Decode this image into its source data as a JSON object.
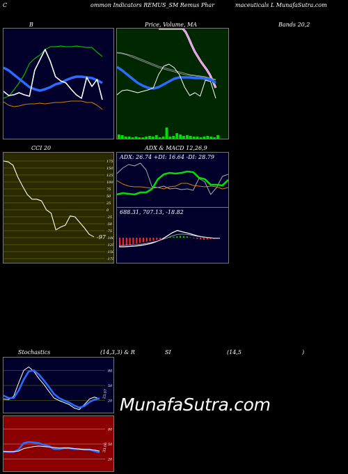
{
  "header": {
    "c": "C",
    "company": "ommon Indicators REMUS_SM Remus Phar",
    "company2": "maceuticals L MunafaSutra.com"
  },
  "titles": {
    "bb": "B",
    "price_ma": "Price, Volume, MA",
    "bands": "Bands 20,2",
    "cci": "CCI 20",
    "adx_macd": "ADX  & MACD 12,26,9",
    "stoch_a": "Stochastics",
    "stoch_b": "(14,3,3) & R",
    "rsi_a": "SI",
    "rsi_b": "(14,5",
    "rsi_c": ")"
  },
  "watermark": "MunafaSutra.com",
  "colors": {
    "bb_bg": "#00002a",
    "price_bg": "#002800",
    "cci_bg": "#2a2a00",
    "macd_bg": "#00002a",
    "stoch_bg": "#00002a",
    "rsi_bg": "#8b0000"
  },
  "chart_data": [
    {
      "id": "bollinger",
      "type": "line",
      "series": [
        {
          "key": "upper",
          "color": "#00bb00",
          "values": [
            100,
            97,
            88,
            78,
            66,
            50,
            43,
            38,
            30,
            26,
            26,
            25,
            26,
            26,
            25,
            26,
            27,
            27,
            34,
            40
          ]
        },
        {
          "key": "middle",
          "color": "#2a6cff",
          "values": [
            56,
            60,
            66,
            72,
            78,
            84,
            87,
            89,
            87,
            84,
            80,
            78,
            74,
            71,
            69,
            69,
            70,
            71,
            74,
            78
          ]
        },
        {
          "key": "lower",
          "color": "#d87f00",
          "values": [
            105,
            110,
            112,
            111,
            109,
            108,
            108,
            107,
            108,
            107,
            106,
            106,
            105,
            104,
            104,
            104,
            106,
            106,
            110,
            116
          ]
        },
        {
          "key": "price",
          "color": "#ffffff",
          "values": [
            90,
            96,
            95,
            92,
            95,
            97,
            60,
            45,
            30,
            47,
            69,
            75,
            78,
            87,
            95,
            100,
            70,
            83,
            73,
            102
          ]
        }
      ]
    },
    {
      "id": "price-volume-ma",
      "type": "line",
      "volume_color": "#00dd00",
      "volume": [
        6,
        5,
        3,
        3,
        2,
        3,
        2,
        2,
        3,
        4,
        3,
        5,
        2,
        3,
        16,
        3,
        4,
        8,
        6,
        4,
        5,
        4,
        3,
        3,
        2,
        3,
        4,
        3,
        2,
        5
      ],
      "series": [
        {
          "key": "price-high",
          "color": "#ff66ff",
          "values": [
            0,
            0,
            0,
            0,
            0,
            0,
            0,
            0,
            0,
            5,
            14,
            24,
            33,
            40,
            47,
            53,
            59,
            66,
            75,
            85
          ]
        },
        {
          "key": "ma-long-1",
          "color": "#aaaaaa",
          "values": [
            34,
            35,
            37,
            39,
            42,
            45,
            48,
            51,
            54,
            56,
            58,
            60,
            62,
            64,
            66,
            67,
            68,
            69,
            71,
            73
          ]
        },
        {
          "key": "ma-long-2",
          "color": "#aaaaaa",
          "values": [
            35,
            36,
            38,
            41,
            44,
            47,
            50,
            53,
            56,
            58,
            60,
            62,
            64,
            66,
            67,
            68,
            69,
            70,
            72,
            74
          ]
        },
        {
          "key": "ma-short",
          "color": "#2a6cff",
          "values": [
            55,
            60,
            66,
            72,
            78,
            82,
            85,
            86,
            84,
            80,
            76,
            72,
            70,
            70,
            70,
            71,
            71,
            72,
            73,
            78
          ]
        },
        {
          "key": "price",
          "color": "#ffffff",
          "values": [
            95,
            89,
            88,
            90,
            92,
            90,
            88,
            85,
            66,
            54,
            51,
            56,
            66,
            84,
            96,
            92,
            97,
            74,
            76,
            100
          ]
        }
      ]
    },
    {
      "id": "cci",
      "type": "line",
      "ylim": [
        -175,
        175
      ],
      "ticks": [
        175,
        150,
        125,
        100,
        75,
        50,
        25,
        0,
        -25,
        -50,
        -75,
        -100,
        -125,
        -150,
        -175
      ],
      "value_label": "-97",
      "series": [
        {
          "key": "cci",
          "color": "#ffffff",
          "values": [
            175,
            172,
            160,
            118,
            85,
            55,
            38,
            38,
            32,
            0,
            -12,
            -72,
            -62,
            -55,
            -22,
            -25,
            -45,
            -65,
            -88,
            -97
          ]
        }
      ]
    },
    {
      "id": "adx",
      "type": "line",
      "label": "ADX: 26.74  +DI: 16.64  -DI: 28.79",
      "series": [
        {
          "key": "adx",
          "color": "#aaaaaa",
          "values": [
            30,
            22,
            17,
            19,
            15,
            25,
            49,
            50,
            48,
            52,
            51,
            53,
            52,
            54,
            37,
            42,
            60,
            50,
            34,
            31
          ]
        },
        {
          "key": "plus-di",
          "color": "#00dd00",
          "values": [
            60,
            58,
            59,
            60,
            57,
            57,
            52,
            38,
            31,
            29,
            30,
            29,
            27,
            28,
            36,
            38,
            46,
            46,
            47,
            39
          ]
        },
        {
          "key": "minus-di",
          "color": "#d87f00",
          "values": [
            40,
            45,
            48,
            49,
            49,
            50,
            51,
            50,
            52,
            49,
            48,
            44,
            44,
            47,
            48,
            49,
            48,
            49,
            52,
            50
          ]
        }
      ]
    },
    {
      "id": "macd",
      "type": "bar",
      "label": "688.31,  707.13,  -18.82",
      "histogram": [
        -5.6,
        -5.3,
        -4.9,
        -4.6,
        -4.2,
        -3.8,
        -3.4,
        -3.0,
        -2.6,
        -2.2,
        -1.8,
        -1.4,
        -1.0,
        -0.5,
        0.0,
        0.4,
        0.7,
        1.0,
        1.2,
        1.1,
        0.8,
        0.2,
        -0.4,
        -0.8,
        -1.1,
        -1.3,
        -1.2,
        -1.0,
        -0.8,
        -0.6
      ],
      "series": [
        {
          "key": "macd",
          "color": "#ffffff",
          "values": [
            9,
            9,
            8.8,
            8.6,
            8.3,
            7.8,
            7.2,
            6.2,
            5.0,
            3.2,
            1.3,
            0.0,
            0.8,
            1.5,
            2.4,
            3.2,
            3.7,
            4.0,
            4.3,
            4.3
          ]
        },
        {
          "key": "signal",
          "color": "#aaaaaa",
          "values": [
            8.3,
            8.2,
            8.1,
            7.9,
            7.6,
            7.2,
            6.7,
            6.0,
            5.1,
            4.2,
            3.0,
            2.2,
            2.0,
            2.3,
            2.8,
            3.4,
            3.8,
            4.1,
            4.3,
            4.4
          ]
        }
      ]
    },
    {
      "id": "stochastics",
      "type": "line",
      "ylim": [
        0,
        100
      ],
      "ticks": [
        80,
        50,
        20
      ],
      "value_label": "23.07",
      "series": [
        {
          "key": "k",
          "color": "#ffffff",
          "values": [
            23,
            22,
            28,
            55,
            80,
            87,
            78,
            64,
            52,
            38,
            25,
            20,
            16,
            12,
            5,
            2,
            12,
            23,
            27,
            23
          ]
        },
        {
          "key": "d",
          "color": "#2a6cff",
          "values": [
            30,
            25,
            25,
            40,
            62,
            78,
            80,
            72,
            60,
            47,
            33,
            25,
            20,
            16,
            10,
            6,
            9,
            17,
            22,
            24
          ]
        }
      ]
    },
    {
      "id": "rsi",
      "type": "line",
      "ylim": [
        0,
        100
      ],
      "ticks": [
        80,
        50,
        20
      ],
      "value_label": "33.06",
      "series": [
        {
          "key": "rsi",
          "color": "#2a6cff",
          "values": [
            35,
            34,
            34,
            39,
            52,
            54,
            53,
            52,
            48,
            46,
            40,
            40,
            42,
            42,
            40,
            40,
            39,
            39,
            36,
            33
          ]
        },
        {
          "key": "rsi-ma",
          "color": "#ffffff",
          "values": [
            35,
            35,
            35,
            36,
            41,
            43,
            45,
            46,
            45,
            44,
            43,
            42,
            42,
            42,
            41,
            40,
            39,
            39,
            38,
            36
          ]
        }
      ]
    }
  ]
}
